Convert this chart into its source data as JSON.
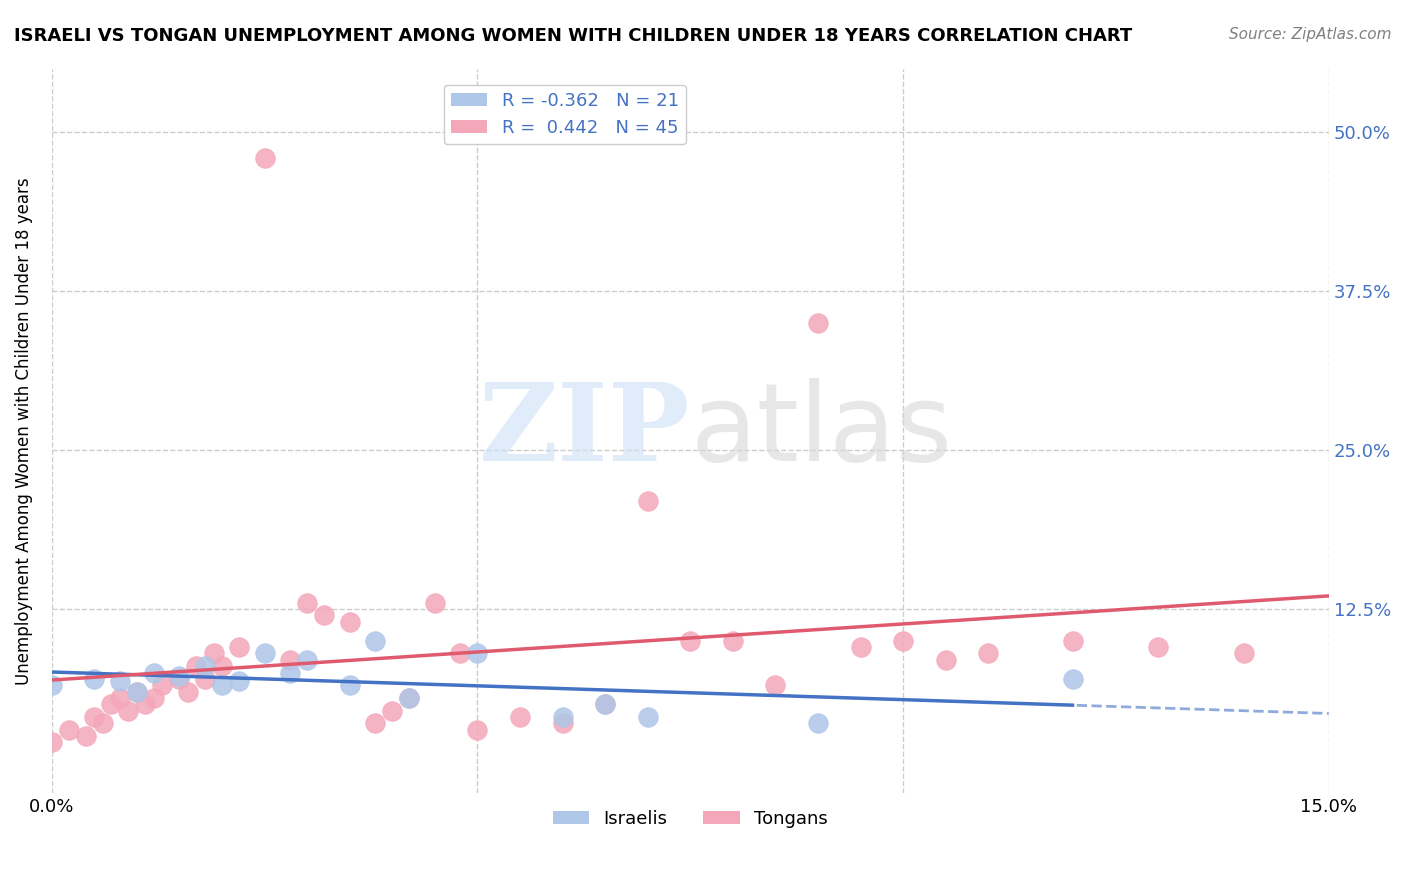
{
  "title": "ISRAELI VS TONGAN UNEMPLOYMENT AMONG WOMEN WITH CHILDREN UNDER 18 YEARS CORRELATION CHART",
  "source": "Source: ZipAtlas.com",
  "ylabel": "Unemployment Among Women with Children Under 18 years",
  "xmin": 0.0,
  "xmax": 0.15,
  "ymin": -0.02,
  "ymax": 0.55,
  "ytick_positions": [
    0.5,
    0.375,
    0.25,
    0.125
  ],
  "ytick_labels": [
    "50.0%",
    "37.5%",
    "25.0%",
    "12.5%"
  ],
  "grid_color": "#cccccc",
  "israeli_color": "#aec6e8",
  "tongan_color": "#f4a7b9",
  "israeli_line_color": "#4472c4",
  "tongan_line_color": "#e05a6e",
  "israeli_R": -0.362,
  "israeli_N": 21,
  "tongan_R": 0.442,
  "tongan_N": 45,
  "israeli_x": [
    0.0,
    0.005,
    0.008,
    0.01,
    0.012,
    0.015,
    0.018,
    0.02,
    0.022,
    0.025,
    0.028,
    0.03,
    0.035,
    0.038,
    0.042,
    0.05,
    0.06,
    0.065,
    0.07,
    0.09,
    0.12
  ],
  "israeli_y": [
    0.065,
    0.07,
    0.068,
    0.06,
    0.075,
    0.072,
    0.08,
    0.065,
    0.068,
    0.09,
    0.075,
    0.085,
    0.065,
    0.1,
    0.055,
    0.09,
    0.04,
    0.05,
    0.04,
    0.035,
    0.07
  ],
  "tongan_x": [
    0.0,
    0.002,
    0.004,
    0.005,
    0.006,
    0.007,
    0.008,
    0.009,
    0.01,
    0.011,
    0.012,
    0.013,
    0.015,
    0.016,
    0.017,
    0.018,
    0.019,
    0.02,
    0.022,
    0.025,
    0.028,
    0.03,
    0.032,
    0.035,
    0.038,
    0.04,
    0.042,
    0.045,
    0.048,
    0.05,
    0.055,
    0.06,
    0.065,
    0.07,
    0.075,
    0.08,
    0.085,
    0.09,
    0.095,
    0.1,
    0.105,
    0.11,
    0.12,
    0.13,
    0.14
  ],
  "tongan_y": [
    0.02,
    0.03,
    0.025,
    0.04,
    0.035,
    0.05,
    0.055,
    0.045,
    0.06,
    0.05,
    0.055,
    0.065,
    0.07,
    0.06,
    0.08,
    0.07,
    0.09,
    0.08,
    0.095,
    0.48,
    0.085,
    0.13,
    0.12,
    0.115,
    0.035,
    0.045,
    0.055,
    0.13,
    0.09,
    0.03,
    0.04,
    0.035,
    0.05,
    0.21,
    0.1,
    0.1,
    0.065,
    0.35,
    0.095,
    0.1,
    0.085,
    0.09,
    0.1,
    0.095,
    0.09
  ]
}
